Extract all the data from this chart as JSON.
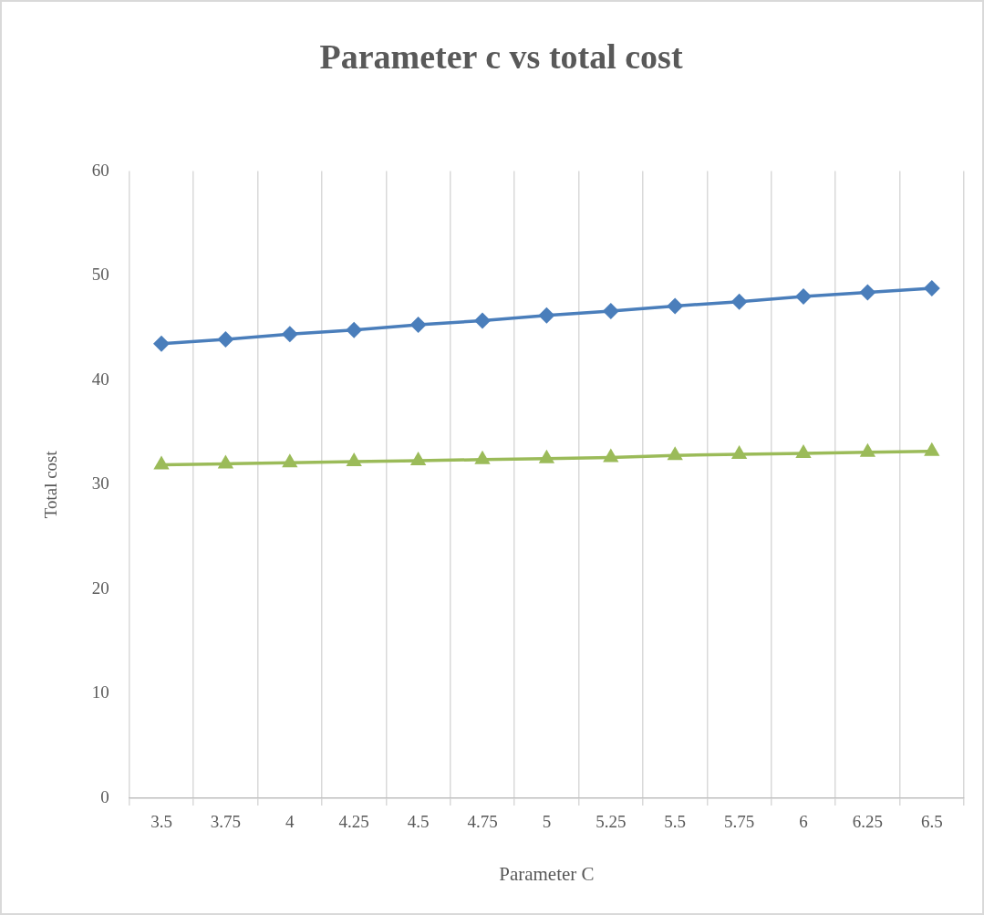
{
  "chart_data": {
    "type": "line",
    "title": "Parameter c vs total cost",
    "xlabel": "Parameter C",
    "ylabel": "Total cost",
    "categories": [
      "3.5",
      "3.75",
      "4",
      "4.25",
      "4.5",
      "4.75",
      "5",
      "5.25",
      "5.5",
      "5.75",
      "6",
      "6.25",
      "6.5"
    ],
    "ylim": [
      0,
      60
    ],
    "yticks": [
      0,
      10,
      20,
      30,
      40,
      50,
      60
    ],
    "grid": "x",
    "legend": false,
    "line_style": "solid",
    "series": [
      {
        "color": "#4a7ebb",
        "marker": "diamond",
        "values": [
          43.5,
          43.9,
          44.4,
          44.8,
          45.3,
          45.7,
          46.2,
          46.6,
          47.1,
          47.5,
          48.0,
          48.4,
          48.8
        ]
      },
      {
        "color": "#9bbb59",
        "marker": "triangle",
        "values": [
          31.9,
          32.0,
          32.1,
          32.2,
          32.3,
          32.4,
          32.5,
          32.6,
          32.8,
          32.9,
          33.0,
          33.1,
          33.2
        ]
      }
    ]
  }
}
